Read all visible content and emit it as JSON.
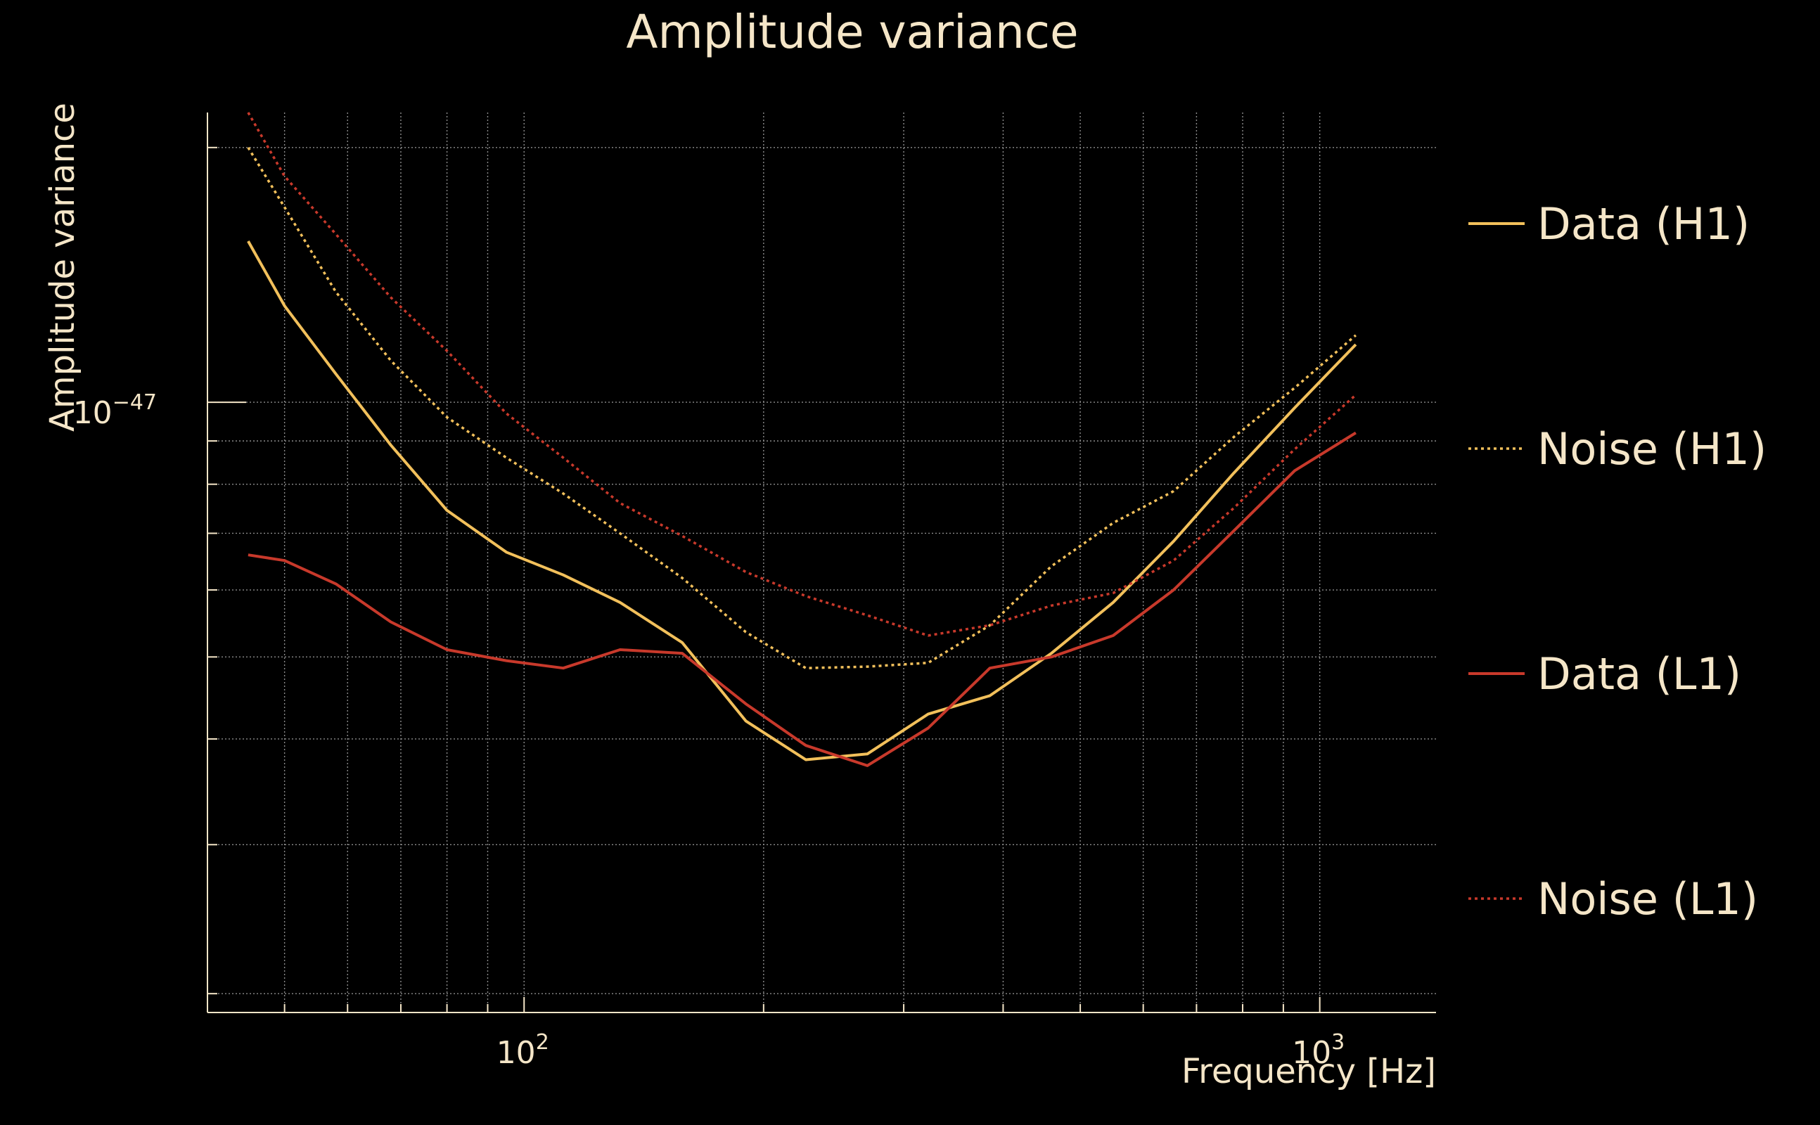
{
  "chart_data": {
    "type": "line",
    "title": "Amplitude variance",
    "xlabel": "Frequency [Hz]",
    "ylabel": "Amplitude variance",
    "xscale": "log",
    "yscale": "log",
    "xlim": [
      40,
      1400
    ],
    "ylim": [
      1.9e-48,
      2.2e-47
    ],
    "xticks": [
      {
        "value": 100,
        "base": "10",
        "exp": "2"
      },
      {
        "value": 1000,
        "base": "10",
        "exp": "3"
      }
    ],
    "yticks": [
      {
        "value": 1e-47,
        "base": "10",
        "exp": "−47"
      }
    ],
    "grid": true,
    "legend_position": "right",
    "colors": {
      "background": "#000000",
      "text": "#f5e6c8",
      "grid": "#8c8c8c",
      "h1": "#f2c05b",
      "l1": "#c8392b"
    },
    "series": [
      {
        "name": "Data (H1)",
        "color": "#f2c05b",
        "dash": "solid",
        "x": [
          45,
          50,
          58,
          68,
          80,
          95,
          112,
          132,
          158,
          190,
          226,
          270,
          322,
          385,
          460,
          550,
          655,
          780,
          930,
          1110
        ],
        "y": [
          1.55e-47,
          1.3e-47,
          1.08e-47,
          8.9e-48,
          7.45e-48,
          6.65e-48,
          6.25e-48,
          5.8e-48,
          5.2e-48,
          4.2e-48,
          3.78e-48,
          3.84e-48,
          4.28e-48,
          4.5e-48,
          5.05e-48,
          5.8e-48,
          6.85e-48,
          8.25e-48,
          9.85e-48,
          1.17e-47
        ]
      },
      {
        "name": "Noise (H1)",
        "color": "#f2c05b",
        "dash": "dotted",
        "x": [
          45,
          50,
          58,
          68,
          80,
          95,
          112,
          132,
          158,
          190,
          226,
          270,
          322,
          385,
          460,
          550,
          655,
          780,
          930,
          1110
        ],
        "y": [
          2e-47,
          1.7e-47,
          1.35e-47,
          1.12e-47,
          9.6e-48,
          8.6e-48,
          7.8e-48,
          7e-48,
          6.2e-48,
          5.35e-48,
          4.85e-48,
          4.87e-48,
          4.92e-48,
          5.45e-48,
          6.4e-48,
          7.2e-48,
          7.85e-48,
          9.1e-48,
          1.04e-47,
          1.2e-47
        ]
      },
      {
        "name": "Data (L1)",
        "color": "#c8392b",
        "dash": "solid",
        "x": [
          45,
          50,
          58,
          68,
          80,
          95,
          112,
          132,
          158,
          190,
          226,
          270,
          322,
          385,
          460,
          550,
          655,
          780,
          930,
          1110
        ],
        "y": [
          6.6e-48,
          6.5e-48,
          6.1e-48,
          5.5e-48,
          5.1e-48,
          4.95e-48,
          4.85e-48,
          5.1e-48,
          5.05e-48,
          4.4e-48,
          3.93e-48,
          3.72e-48,
          4.12e-48,
          4.85e-48,
          5e-48,
          5.3e-48,
          6e-48,
          7.05e-48,
          8.3e-48,
          9.2e-48
        ]
      },
      {
        "name": "Noise (L1)",
        "color": "#c8392b",
        "dash": "dotted",
        "x": [
          45,
          50,
          58,
          68,
          80,
          95,
          112,
          132,
          158,
          190,
          226,
          270,
          322,
          385,
          460,
          550,
          655,
          780,
          930,
          1110
        ],
        "y": [
          2.2e-47,
          1.85e-47,
          1.58e-47,
          1.33e-47,
          1.15e-47,
          9.7e-48,
          8.6e-48,
          7.6e-48,
          6.95e-48,
          6.3e-48,
          5.9e-48,
          5.6e-48,
          5.3e-48,
          5.45e-48,
          5.75e-48,
          5.95e-48,
          6.5e-48,
          7.5e-48,
          8.8e-48,
          1.02e-47
        ]
      }
    ]
  }
}
